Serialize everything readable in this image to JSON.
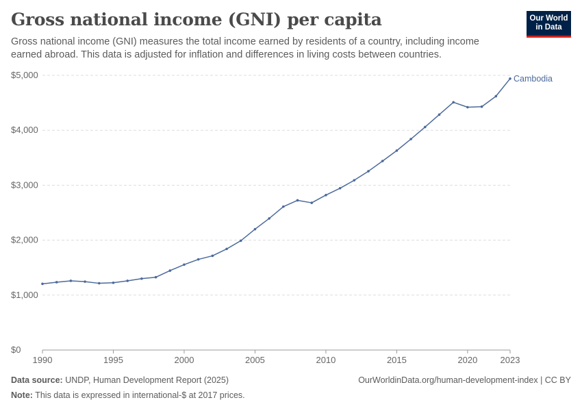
{
  "header": {
    "title": "Gross national income (GNI) per capita",
    "subtitle": "Gross national income (GNI) measures the total income earned by residents of a country, including income earned abroad. This data is adjusted for inflation and differences in living costs between countries.",
    "logo_line1": "Our World",
    "logo_line2": "in Data"
  },
  "footer": {
    "source_label": "Data source:",
    "source_text": "UNDP, Human Development Report (2025)",
    "note_label": "Note:",
    "note_text": "This data is expressed in international-$ at 2017 prices.",
    "url_license": "OurWorldinData.org/human-development-index | CC BY"
  },
  "colors": {
    "series": "#4c6a9c",
    "grid": "#dddddd",
    "axis": "#999999"
  },
  "chart_data": {
    "type": "line",
    "title": "Gross national income (GNI) per capita",
    "xlabel": "",
    "ylabel": "",
    "xlim": [
      1990,
      2023
    ],
    "ylim": [
      0,
      5000
    ],
    "x_ticks": [
      1990,
      1995,
      2000,
      2005,
      2010,
      2015,
      2020,
      2023
    ],
    "y_ticks": [
      0,
      1000,
      2000,
      3000,
      4000,
      5000
    ],
    "y_tick_labels": [
      "$0",
      "$1,000",
      "$2,000",
      "$3,000",
      "$4,000",
      "$5,000"
    ],
    "grid": true,
    "series": [
      {
        "name": "Cambodia",
        "x": [
          1990,
          1991,
          1992,
          1993,
          1994,
          1995,
          1996,
          1997,
          1998,
          1999,
          2000,
          2001,
          2002,
          2003,
          2004,
          2005,
          2006,
          2007,
          2008,
          2009,
          2010,
          2011,
          2012,
          2013,
          2014,
          2015,
          2016,
          2017,
          2018,
          2019,
          2020,
          2021,
          2022,
          2023
        ],
        "values": [
          1205,
          1235,
          1260,
          1245,
          1215,
          1225,
          1260,
          1300,
          1325,
          1445,
          1555,
          1650,
          1715,
          1840,
          1990,
          2200,
          2395,
          2610,
          2725,
          2680,
          2820,
          2945,
          3090,
          3255,
          3440,
          3630,
          3840,
          4060,
          4285,
          4510,
          4420,
          4430,
          4620,
          4940
        ]
      }
    ]
  }
}
